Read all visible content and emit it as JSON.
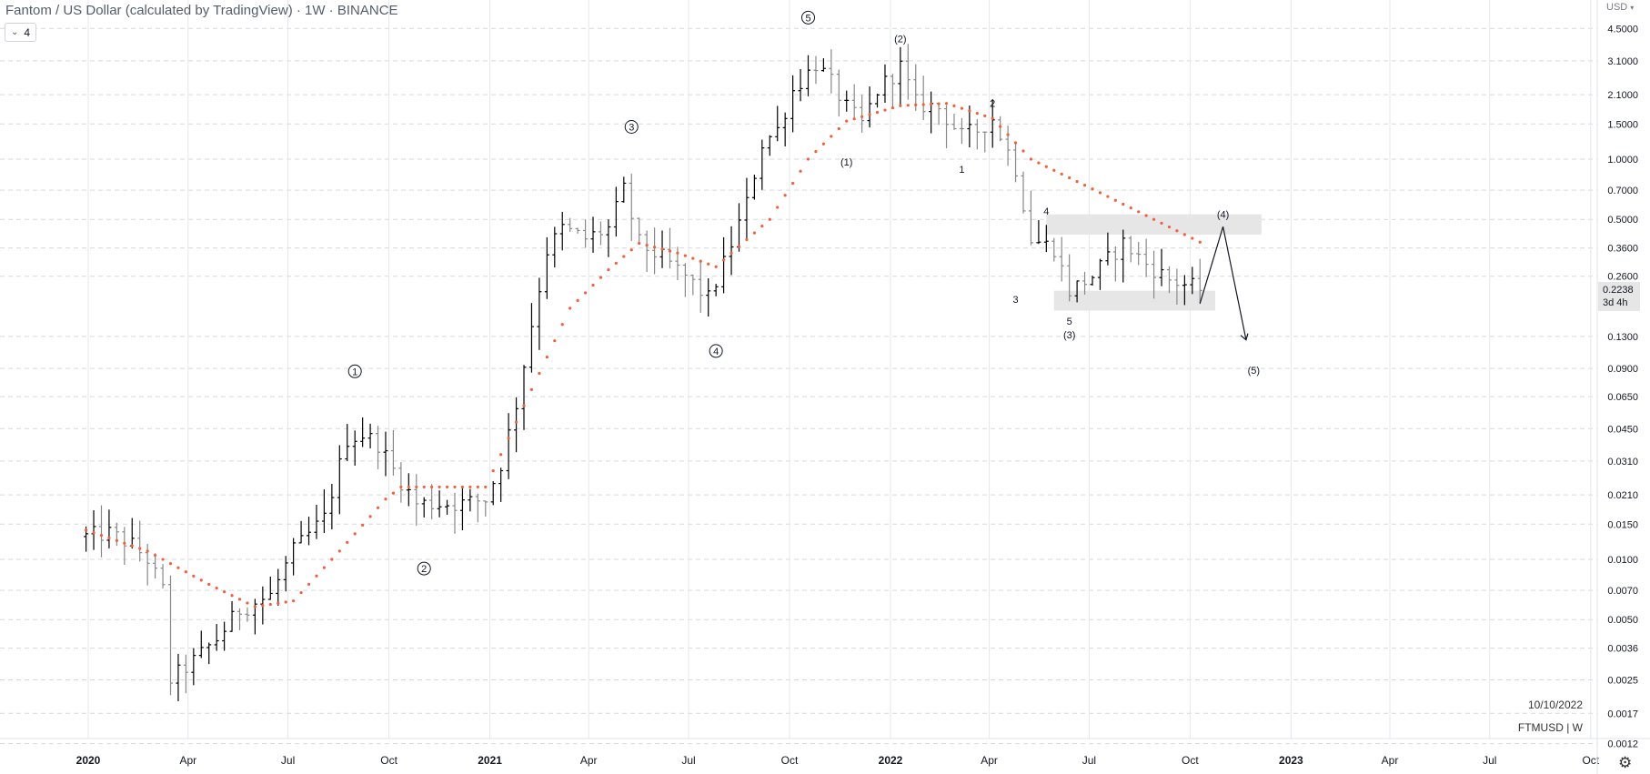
{
  "header": {
    "title": "Fantom / US Dollar (calculated by TradingView) · 1W · BINANCE",
    "indicator_count": "4",
    "currency": "USD"
  },
  "info": {
    "date": "10/10/2022",
    "symbol_tf": "FTMUSD | W"
  },
  "icons": {
    "settings": "gear-icon",
    "dropdown": "chevron-down-icon"
  },
  "colors": {
    "candle_up": "#000000",
    "candle_down": "#888888",
    "sar": "#f0603c",
    "zone": "#e6e6e6",
    "grid_h": "#d7d9de",
    "grid_v": "#e6e7ea",
    "price_label_bg": "#e6e6e6"
  },
  "chart_data": {
    "type": "ohlc",
    "title": "Fantom / US Dollar (calculated by TradingView) · 1W · BINANCE",
    "scale": "log",
    "ylim": [
      0.001,
      4.5
    ],
    "y_ticks": [
      "4.5000",
      "3.1000",
      "2.1000",
      "1.5000",
      "1.0000",
      "0.7000",
      "0.5000",
      "0.3600",
      "0.2600",
      "0.1300",
      "0.0900",
      "0.0650",
      "0.0450",
      "0.0310",
      "0.0210",
      "0.0150",
      "0.0100",
      "0.0070",
      "0.0050",
      "0.0036",
      "0.0025",
      "0.0017",
      "0.0012"
    ],
    "x_ticks": [
      "2020",
      "Apr",
      "Jul",
      "Oct",
      "2021",
      "Apr",
      "Jul",
      "Oct",
      "2022",
      "Apr",
      "Jul",
      "Oct",
      "2023",
      "Apr",
      "Jul",
      "Oct"
    ],
    "last_price": "0.2238",
    "countdown": "3d 4h",
    "price_path": [
      [
        "2019-12-30",
        0.013
      ],
      [
        "2020-01-20",
        0.0135
      ],
      [
        "2020-02-10",
        0.0118
      ],
      [
        "2020-02-24",
        0.01
      ],
      [
        "2020-03-09",
        0.007
      ],
      [
        "2020-03-16",
        0.0025
      ],
      [
        "2020-04-06",
        0.0031
      ],
      [
        "2020-04-27",
        0.004
      ],
      [
        "2020-05-18",
        0.0056
      ],
      [
        "2020-06-15",
        0.0066
      ],
      [
        "2020-07-06",
        0.011
      ],
      [
        "2020-08-03",
        0.016
      ],
      [
        "2020-08-24",
        0.04
      ],
      [
        "2020-09-07",
        0.042
      ],
      [
        "2020-09-21",
        0.038
      ],
      [
        "2020-10-05",
        0.028
      ],
      [
        "2020-10-26",
        0.019
      ],
      [
        "2020-11-16",
        0.019
      ],
      [
        "2020-12-07",
        0.019
      ],
      [
        "2020-12-28",
        0.02
      ],
      [
        "2021-01-11",
        0.03
      ],
      [
        "2021-01-25",
        0.06
      ],
      [
        "2021-02-08",
        0.15
      ],
      [
        "2021-02-22",
        0.35
      ],
      [
        "2021-03-08",
        0.45
      ],
      [
        "2021-03-29",
        0.4
      ],
      [
        "2021-04-19",
        0.45
      ],
      [
        "2021-05-03",
        0.7
      ],
      [
        "2021-05-17",
        0.38
      ],
      [
        "2021-06-07",
        0.32
      ],
      [
        "2021-06-28",
        0.26
      ],
      [
        "2021-07-19",
        0.2
      ],
      [
        "2021-08-02",
        0.3
      ],
      [
        "2021-08-23",
        0.6
      ],
      [
        "2021-09-06",
        1.2
      ],
      [
        "2021-09-20",
        1.4
      ],
      [
        "2021-10-04",
        2.2
      ],
      [
        "2021-10-25",
        3.0
      ],
      [
        "2021-11-08",
        2.4
      ],
      [
        "2021-11-22",
        1.8
      ],
      [
        "2021-12-06",
        1.5
      ],
      [
        "2021-12-20",
        2.2
      ],
      [
        "2022-01-10",
        2.9
      ],
      [
        "2022-01-24",
        1.9
      ],
      [
        "2022-02-14",
        1.8
      ],
      [
        "2022-03-07",
        1.3
      ],
      [
        "2022-03-21",
        1.4
      ],
      [
        "2022-04-04",
        1.6
      ],
      [
        "2022-04-25",
        0.9
      ],
      [
        "2022-05-09",
        0.4
      ],
      [
        "2022-05-30",
        0.36
      ],
      [
        "2022-06-13",
        0.22
      ],
      [
        "2022-07-04",
        0.26
      ],
      [
        "2022-08-01",
        0.38
      ],
      [
        "2022-08-22",
        0.3
      ],
      [
        "2022-09-12",
        0.25
      ],
      [
        "2022-10-10",
        0.2238
      ]
    ],
    "sar_path": [
      [
        "2019-12-30",
        0.014
      ],
      [
        "2020-02-24",
        0.011
      ],
      [
        "2020-04-20",
        0.0075
      ],
      [
        "2020-06-01",
        0.0058
      ],
      [
        "2020-07-06",
        0.0062
      ],
      [
        "2020-08-17",
        0.011
      ],
      [
        "2020-09-28",
        0.02
      ],
      [
        "2020-10-12",
        0.023
      ],
      [
        "2020-12-28",
        0.023
      ],
      [
        "2021-02-15",
        0.085
      ],
      [
        "2021-03-15",
        0.18
      ],
      [
        "2021-04-19",
        0.28
      ],
      [
        "2021-05-17",
        0.38
      ],
      [
        "2021-06-21",
        0.34
      ],
      [
        "2021-07-26",
        0.29
      ],
      [
        "2021-09-13",
        0.5
      ],
      [
        "2021-10-18",
        1.0
      ],
      [
        "2021-11-22",
        1.55
      ],
      [
        "2022-01-10",
        1.85
      ],
      [
        "2022-02-21",
        1.9
      ],
      [
        "2022-04-04",
        1.6
      ],
      [
        "2022-05-09",
        1.0
      ],
      [
        "2022-07-11",
        0.68
      ],
      [
        "2022-08-29",
        0.5
      ],
      [
        "2022-10-10",
        0.385
      ]
    ],
    "projection": [
      [
        "2022-10-10",
        0.19
      ],
      [
        "2022-10-31",
        0.46
      ],
      [
        "2022-11-21",
        0.125
      ]
    ],
    "zones": [
      {
        "from": "2022-05-23",
        "to": "2022-12-05",
        "low": 0.42,
        "high": 0.53
      },
      {
        "from": "2022-05-30",
        "to": "2022-10-24",
        "low": 0.175,
        "high": 0.22
      }
    ],
    "waves": [
      {
        "label": "1",
        "circled": true,
        "date": "2020-08-31",
        "price": 0.087
      },
      {
        "label": "2",
        "circled": true,
        "date": "2020-11-02",
        "price": 0.009
      },
      {
        "label": "3",
        "circled": true,
        "date": "2021-05-10",
        "price": 1.45
      },
      {
        "label": "4",
        "circled": true,
        "date": "2021-07-26",
        "price": 0.11
      },
      {
        "label": "5",
        "circled": true,
        "date": "2021-10-18",
        "price": 5.1
      },
      {
        "label": "(1)",
        "circled": false,
        "date": "2021-11-22",
        "price": 0.97
      },
      {
        "label": "(2)",
        "circled": false,
        "date": "2022-01-10",
        "price": 4.0
      },
      {
        "label": "1",
        "circled": false,
        "date": "2022-03-07",
        "price": 0.89
      },
      {
        "label": "2",
        "circled": false,
        "date": "2022-04-04",
        "price": 1.9
      },
      {
        "label": "3",
        "circled": false,
        "date": "2022-04-25",
        "price": 0.2
      },
      {
        "label": "4",
        "circled": false,
        "date": "2022-05-23",
        "price": 0.55
      },
      {
        "label": "5",
        "circled": false,
        "date": "2022-06-13",
        "price": 0.155
      },
      {
        "label": "(3)",
        "circled": false,
        "date": "2022-06-13",
        "price": 0.133
      },
      {
        "label": "(4)",
        "circled": false,
        "date": "2022-10-31",
        "price": 0.53
      },
      {
        "label": "(5)",
        "circled": false,
        "date": "2022-11-28",
        "price": 0.088
      }
    ]
  }
}
